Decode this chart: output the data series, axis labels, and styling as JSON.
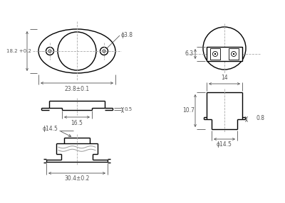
{
  "bg_color": "#ffffff",
  "line_color": "#000000",
  "dim_color": "#555555",
  "dash_color": "#aaaaaa",
  "fig_width": 4.0,
  "fig_height": 2.86,
  "dpi": 100,
  "annotations": {
    "dim_18_2": "18.2 +0.2",
    "dim_23_8": "23.8±0.1",
    "dim_hole": "ϕ3.8",
    "dim_16_5": "16.5",
    "dim_0_5": "0.5",
    "dim_phi14_5_top": "ϕ14.5",
    "dim_30_4": "30.4±0.2",
    "dim_6_3": "6.3",
    "dim_10_7": "10.7",
    "dim_14": "14",
    "dim_0_8": "0.8",
    "dim_phi14_5_right": "ϕ14.5"
  }
}
